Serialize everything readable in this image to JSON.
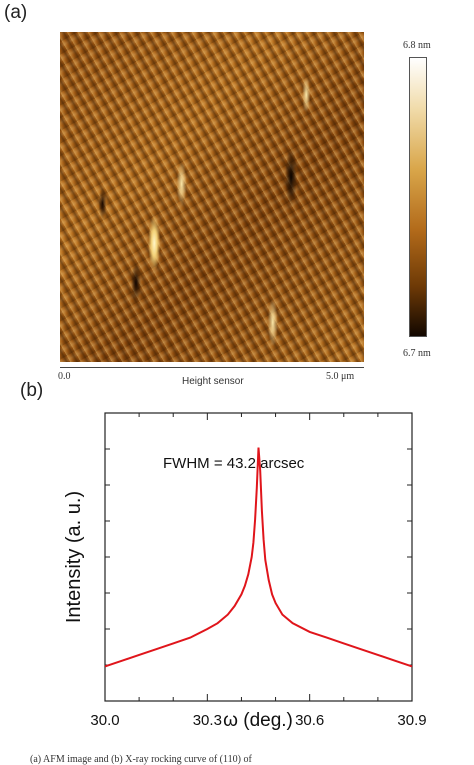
{
  "panel_a": {
    "label": "(a)",
    "colorbar": {
      "max_label": "6.8 nm",
      "min_label": "6.7 nm"
    },
    "axis": {
      "start": "0.0",
      "title": "Height sensor",
      "end": "5.0 μm"
    }
  },
  "panel_b": {
    "label": "(b)",
    "annotation": "FWHM = 43.2 arcsec"
  },
  "chart_data": {
    "type": "line",
    "title": "",
    "xlabel": "ω (deg.)",
    "ylabel": "Intensity (a. u.)",
    "xlim": [
      30.0,
      30.9
    ],
    "ylim": [
      0,
      1
    ],
    "xticks": [
      "30.0",
      "30.3",
      "30.6",
      "30.9"
    ],
    "annotation": "FWHM = 43.2 arcsec",
    "series": [
      {
        "color": "#e0151b",
        "x": [
          30.0,
          30.05,
          30.1,
          30.15,
          30.2,
          30.25,
          30.3,
          30.33,
          30.36,
          30.38,
          30.4,
          30.41,
          30.42,
          30.43,
          30.435,
          30.44,
          30.445,
          30.45,
          30.455,
          30.46,
          30.465,
          30.47,
          30.48,
          30.49,
          30.5,
          30.52,
          30.55,
          30.6,
          30.65,
          30.7,
          30.75,
          30.8,
          30.85,
          30.9
        ],
        "y": [
          0.12,
          0.14,
          0.16,
          0.18,
          0.2,
          0.22,
          0.25,
          0.27,
          0.3,
          0.33,
          0.37,
          0.4,
          0.44,
          0.5,
          0.55,
          0.63,
          0.74,
          0.88,
          0.8,
          0.66,
          0.56,
          0.49,
          0.42,
          0.37,
          0.34,
          0.3,
          0.27,
          0.24,
          0.22,
          0.2,
          0.18,
          0.16,
          0.14,
          0.12
        ]
      }
    ]
  },
  "caption": "(a) AFM image and (b) X-ray rocking curve of (110) of"
}
